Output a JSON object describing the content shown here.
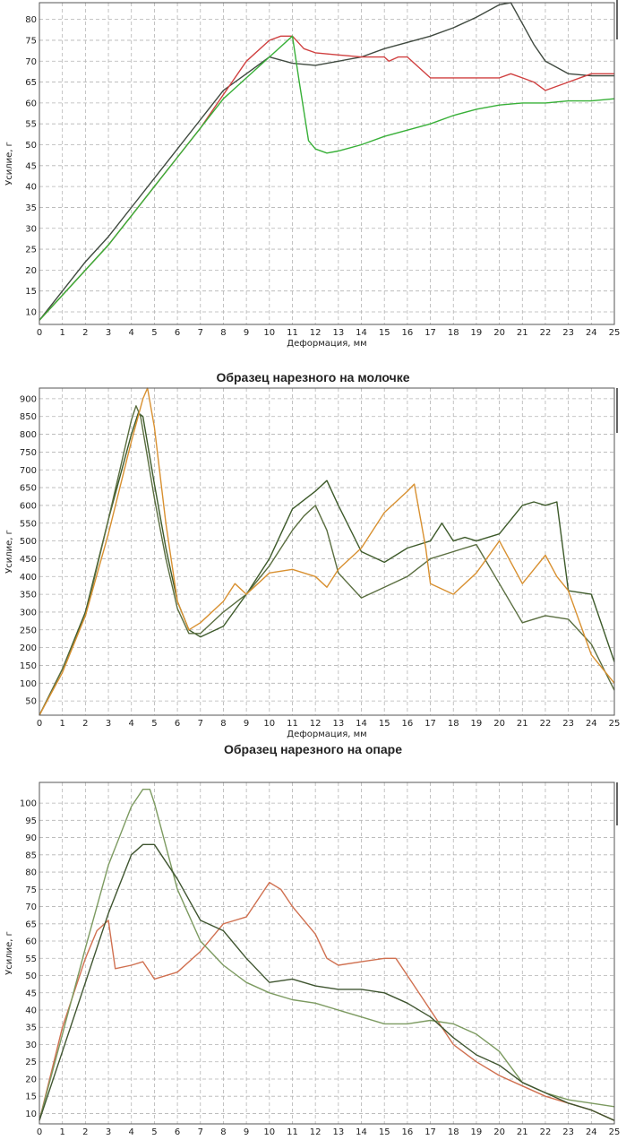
{
  "chart_data": [
    {
      "type": "line",
      "title": "",
      "xlabel": "Деформация, мм",
      "ylabel": "Усилие, г",
      "xlim": [
        0,
        25
      ],
      "ylim": [
        7,
        84
      ],
      "grid": true,
      "legend": "none",
      "x_ticks": [
        0,
        1,
        2,
        3,
        4,
        5,
        6,
        7,
        8,
        9,
        10,
        11,
        12,
        13,
        14,
        15,
        16,
        17,
        18,
        19,
        20,
        21,
        22,
        23,
        24,
        25
      ],
      "y_ticks": [
        10,
        15,
        20,
        25,
        30,
        35,
        40,
        45,
        50,
        55,
        60,
        65,
        70,
        75,
        80
      ],
      "series": [
        {
          "color": "#404a40",
          "x": [
            0,
            1,
            2,
            3,
            4,
            5,
            6,
            7,
            8,
            9,
            10,
            11,
            12,
            13,
            14,
            15,
            16,
            17,
            18,
            19,
            20,
            20.5,
            21,
            21.5,
            22,
            23,
            24,
            25
          ],
          "y": [
            8,
            15,
            22,
            28,
            35,
            42,
            49,
            56,
            63,
            67,
            71,
            69.5,
            69,
            70,
            71,
            73,
            74.5,
            76,
            78,
            80.5,
            83.5,
            84,
            79,
            74,
            70,
            67,
            66.5,
            66.5
          ]
        },
        {
          "color": "#d04040",
          "x": [
            0,
            1,
            2,
            3,
            4,
            5,
            6,
            7,
            8,
            9,
            10,
            10.5,
            11,
            11.5,
            12,
            13,
            14,
            15,
            15.2,
            15.6,
            16,
            17,
            18,
            19,
            20,
            20.5,
            21,
            21.5,
            22,
            23,
            24,
            25
          ],
          "y": [
            8,
            14,
            20,
            26,
            33,
            40,
            47,
            54,
            62,
            70,
            75,
            76,
            76,
            73,
            72,
            71.5,
            71,
            71,
            70,
            71,
            71,
            66,
            66,
            66,
            66,
            67,
            66,
            65,
            63,
            65,
            67,
            67
          ]
        },
        {
          "color": "#38b038",
          "x": [
            0,
            1,
            2,
            3,
            4,
            5,
            6,
            7,
            8,
            9,
            10,
            11,
            11.3,
            11.7,
            12,
            12.5,
            13,
            14,
            15,
            16,
            17,
            18,
            19,
            20,
            21,
            22,
            23,
            24,
            25
          ],
          "y": [
            8,
            14,
            20,
            26,
            33,
            40,
            47,
            54,
            61,
            66,
            71,
            76,
            65,
            51,
            49,
            48,
            48.5,
            50,
            52,
            53.5,
            55,
            57,
            58.5,
            59.5,
            60,
            60,
            60.5,
            60.5,
            61
          ]
        }
      ]
    },
    {
      "type": "line",
      "title": "Образец нарезного на молочке",
      "xlabel": "Деформация, мм",
      "ylabel": "Усилие, г",
      "xlim": [
        0,
        25
      ],
      "ylim": [
        10,
        930
      ],
      "grid": true,
      "legend": "none",
      "x_ticks": [
        0,
        1,
        2,
        3,
        4,
        5,
        6,
        7,
        8,
        9,
        10,
        11,
        12,
        13,
        14,
        15,
        16,
        17,
        18,
        19,
        20,
        21,
        22,
        23,
        24,
        25
      ],
      "y_ticks": [
        50,
        100,
        150,
        200,
        250,
        300,
        350,
        400,
        450,
        500,
        550,
        600,
        650,
        700,
        750,
        800,
        850,
        900
      ],
      "series": [
        {
          "color": "#3d5a2a",
          "x": [
            0,
            1,
            2,
            3,
            4,
            4.3,
            4.5,
            5,
            5.5,
            6,
            6.5,
            7,
            8,
            9,
            10,
            11,
            12,
            12.5,
            13,
            14,
            15,
            16,
            17,
            17.5,
            18,
            18.5,
            19,
            20,
            21,
            21.5,
            22,
            22.5,
            23,
            24,
            25
          ],
          "y": [
            10,
            140,
            300,
            560,
            800,
            860,
            850,
            660,
            480,
            330,
            250,
            230,
            260,
            350,
            450,
            590,
            640,
            670,
            600,
            470,
            440,
            480,
            500,
            550,
            500,
            510,
            500,
            520,
            600,
            610,
            600,
            610,
            360,
            350,
            160
          ]
        },
        {
          "color": "#5a6e40",
          "x": [
            0,
            1,
            2,
            3,
            4,
            4.2,
            4.4,
            5,
            5.5,
            6,
            6.5,
            7,
            8,
            9,
            10,
            11,
            11.5,
            12,
            12.5,
            13,
            14,
            15,
            16,
            17,
            18,
            19,
            20,
            21,
            22,
            23,
            24,
            25
          ],
          "y": [
            10,
            140,
            290,
            560,
            840,
            880,
            850,
            620,
            450,
            310,
            240,
            240,
            300,
            350,
            430,
            530,
            570,
            600,
            530,
            410,
            340,
            370,
            400,
            450,
            470,
            490,
            380,
            270,
            290,
            280,
            210,
            80
          ]
        },
        {
          "color": "#d89030",
          "x": [
            0,
            1,
            2,
            3,
            4,
            4.5,
            4.7,
            5,
            5.5,
            6,
            6.5,
            7,
            8,
            8.5,
            9,
            10,
            11,
            12,
            12.5,
            13,
            14,
            15,
            16,
            16.3,
            16.8,
            17,
            18,
            19,
            20,
            21,
            22,
            22.5,
            23,
            24,
            25
          ],
          "y": [
            10,
            130,
            290,
            520,
            780,
            900,
            930,
            820,
            550,
            330,
            250,
            270,
            330,
            380,
            350,
            410,
            420,
            400,
            370,
            420,
            480,
            580,
            640,
            660,
            480,
            380,
            350,
            410,
            500,
            380,
            460,
            400,
            360,
            180,
            100
          ]
        }
      ]
    },
    {
      "type": "line",
      "title": "Образец нарезного на опаре",
      "xlabel": "",
      "ylabel": "Усилие, г",
      "xlim": [
        0,
        25
      ],
      "ylim": [
        7,
        106
      ],
      "grid": true,
      "legend": "none",
      "x_ticks": [
        0,
        1,
        2,
        3,
        4,
        5,
        6,
        7,
        8,
        9,
        10,
        11,
        12,
        13,
        14,
        15,
        16,
        17,
        18,
        19,
        20,
        21,
        22,
        23,
        24,
        25
      ],
      "y_ticks": [
        10,
        15,
        20,
        25,
        30,
        35,
        40,
        45,
        50,
        55,
        60,
        65,
        70,
        75,
        80,
        85,
        90,
        95,
        100
      ],
      "series": [
        {
          "color": "#d07050",
          "x": [
            0,
            1,
            2,
            2.5,
            3,
            3.3,
            4,
            4.5,
            5,
            6,
            7,
            8,
            9,
            10,
            10.5,
            11,
            12,
            12.5,
            13,
            14,
            15,
            15.5,
            16,
            17,
            18,
            19,
            20,
            21,
            22,
            23,
            24,
            25
          ],
          "y": [
            8,
            35,
            55,
            63,
            66,
            52,
            53,
            54,
            49,
            51,
            57,
            65,
            67,
            77,
            75,
            70,
            62,
            55,
            53,
            54,
            55,
            55,
            50,
            40,
            30,
            25,
            21,
            18,
            15,
            13,
            11,
            8
          ]
        },
        {
          "color": "#7c9a60",
          "x": [
            0,
            1,
            2,
            3,
            4,
            4.5,
            4.8,
            5,
            6,
            7,
            8,
            9,
            10,
            11,
            12,
            13,
            14,
            15,
            16,
            17,
            18,
            19,
            20,
            21,
            22,
            23,
            24,
            25
          ],
          "y": [
            8,
            33,
            58,
            82,
            99,
            104,
            104,
            100,
            75,
            60,
            53,
            48,
            45,
            43,
            42,
            40,
            38,
            36,
            36,
            37,
            36,
            33,
            28,
            19,
            16,
            14,
            13,
            12
          ]
        },
        {
          "color": "#3f5530",
          "x": [
            0,
            1,
            2,
            3,
            4,
            4.5,
            5,
            6,
            7,
            8,
            9,
            10,
            11,
            12,
            13,
            14,
            15,
            16,
            17,
            18,
            19,
            20,
            21,
            22,
            23,
            24,
            25
          ],
          "y": [
            8,
            28,
            48,
            68,
            85,
            88,
            88,
            78,
            66,
            63,
            55,
            48,
            49,
            47,
            46,
            46,
            45,
            42,
            38,
            32,
            27,
            24,
            19,
            16,
            13,
            11,
            8
          ]
        }
      ]
    }
  ]
}
